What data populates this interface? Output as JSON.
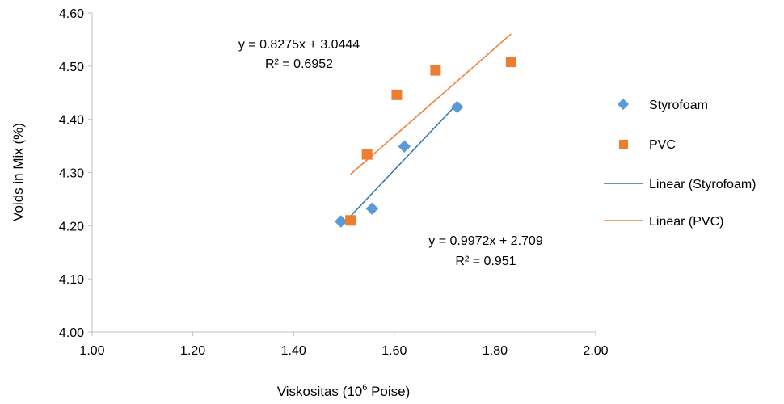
{
  "chart_data": {
    "type": "scatter",
    "xlabel_main": "Viskositas (10",
    "xlabel_sup": "6",
    "xlabel_tail": " Poise)",
    "ylabel": "Voids in Mix (%)",
    "xlim": [
      1.0,
      2.0
    ],
    "ylim": [
      4.0,
      4.6
    ],
    "x_ticks": [
      "1.00",
      "1.20",
      "1.40",
      "1.60",
      "1.80",
      "2.00"
    ],
    "y_ticks": [
      "4.00",
      "4.10",
      "4.20",
      "4.30",
      "4.40",
      "4.50",
      "4.60"
    ],
    "grid": false,
    "legend_position": "right",
    "series": [
      {
        "name": "Styrofoam",
        "marker": "diamond",
        "color": "#5B9BD5",
        "points": [
          [
            1.494,
            4.208
          ],
          [
            1.556,
            4.232
          ],
          [
            1.62,
            4.349
          ],
          [
            1.725,
            4.423
          ]
        ]
      },
      {
        "name": "PVC",
        "marker": "square",
        "color": "#ED7D31",
        "points": [
          [
            1.513,
            4.21
          ],
          [
            1.546,
            4.334
          ],
          [
            1.605,
            4.446
          ],
          [
            1.682,
            4.492
          ],
          [
            1.832,
            4.508
          ]
        ]
      }
    ],
    "trendlines": [
      {
        "name": "Linear (Styrofoam)",
        "color": "#2E75B6",
        "slope": 0.9972,
        "intercept": 2.709,
        "x_range": [
          1.494,
          1.725
        ],
        "equation": "y = 0.9972x + 2.709",
        "r2": "R² = 0.951"
      },
      {
        "name": "Linear (PVC)",
        "color": "#ED7D31",
        "slope": 0.8275,
        "intercept": 3.0444,
        "x_range": [
          1.513,
          1.832
        ],
        "equation": "y = 0.8275x + 3.0444",
        "r2": "R² = 0.6952"
      }
    ]
  }
}
